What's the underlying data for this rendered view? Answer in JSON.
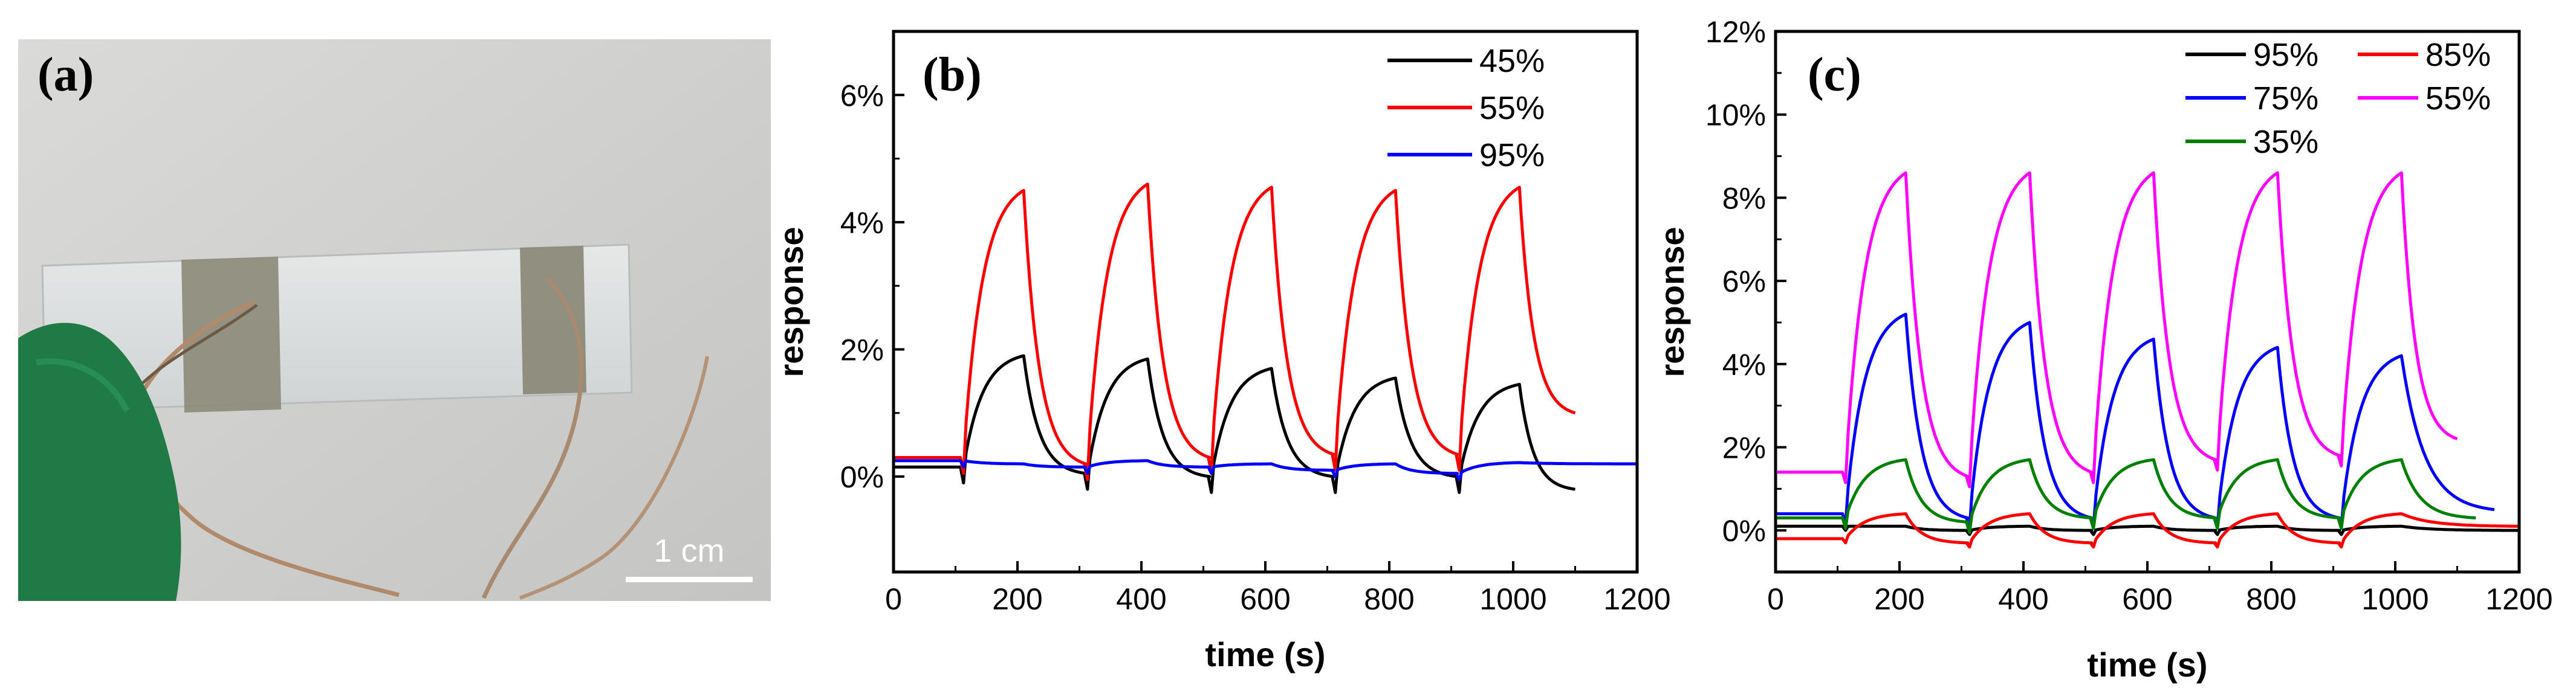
{
  "panel_a": {
    "label": "(a)",
    "scale_bar_label": "1 cm",
    "colors": {
      "background": "#cfcfcd",
      "glove": "#1f7a45",
      "tape": "#8c8a78",
      "wire": "#b08a6a"
    }
  },
  "chart_data": [
    {
      "panel_label": "(b)",
      "type": "line",
      "title": "",
      "xlabel": "time (s)",
      "ylabel": "response",
      "xlim": [
        0,
        1200
      ],
      "ylim": [
        -1.5,
        7
      ],
      "xticks": [
        0,
        200,
        400,
        600,
        800,
        1000,
        1200
      ],
      "yticks": [
        0,
        2,
        4,
        6
      ],
      "xtick_labels": [
        "0",
        "200",
        "400",
        "600",
        "800",
        "1000",
        "1200"
      ],
      "ytick_labels": [
        "0%",
        "2%",
        "4%",
        "6%"
      ],
      "cycles": {
        "starts": [
          110,
          310,
          510,
          710,
          910
        ],
        "on_duration": 100
      },
      "series": [
        {
          "name": "45%",
          "color": "#000000",
          "peaks": [
            1.9,
            1.85,
            1.7,
            1.55,
            1.45
          ],
          "recover_to": [
            0.05,
            0.0,
            0.0,
            0.0,
            -0.2
          ],
          "end_x": 1100
        },
        {
          "name": "55%",
          "color": "#ff0000",
          "peaks": [
            4.5,
            4.6,
            4.55,
            4.5,
            4.55
          ],
          "recover_to": [
            0.2,
            0.3,
            0.35,
            0.35,
            1.0
          ],
          "end_x": 1100
        },
        {
          "name": "95%",
          "color": "#0000ff",
          "peaks": [
            0.2,
            0.25,
            0.2,
            0.2,
            0.22
          ],
          "recover_to": [
            0.15,
            0.15,
            0.1,
            0.05,
            0.2
          ],
          "end_x": 1200
        }
      ]
    },
    {
      "panel_label": "(c)",
      "type": "line",
      "title": "",
      "xlabel": "time (s)",
      "ylabel": "response",
      "xlim": [
        0,
        1200
      ],
      "ylim": [
        -1,
        12
      ],
      "xticks": [
        0,
        200,
        400,
        600,
        800,
        1000,
        1200
      ],
      "yticks": [
        0,
        2,
        4,
        6,
        8,
        10,
        12
      ],
      "xtick_labels": [
        "0",
        "200",
        "400",
        "600",
        "800",
        "1000",
        "1200"
      ],
      "ytick_labels": [
        "0%",
        "2%",
        "4%",
        "6%",
        "8%",
        "10%",
        "12%"
      ],
      "cycles": {
        "starts": [
          110,
          310,
          510,
          710,
          910
        ],
        "on_duration": 100
      },
      "series": [
        {
          "name": "95%",
          "color": "#000000",
          "peaks": [
            0.1,
            0.1,
            0.1,
            0.1,
            0.1
          ],
          "recover_to": [
            0.0,
            0.0,
            0.0,
            0.0,
            0.0
          ],
          "end_x": 1200
        },
        {
          "name": "85%",
          "color": "#ff0000",
          "peaks": [
            0.4,
            0.4,
            0.4,
            0.4,
            0.4
          ],
          "recover_to": [
            -0.3,
            -0.3,
            -0.3,
            -0.3,
            0.1
          ],
          "end_x": 1200
        },
        {
          "name": "75%",
          "color": "#0000ff",
          "peaks": [
            5.2,
            5.0,
            4.6,
            4.4,
            4.2
          ],
          "recover_to": [
            0.3,
            0.3,
            0.3,
            0.3,
            0.5
          ],
          "end_x": 1160
        },
        {
          "name": "55%",
          "color": "#ff00ff",
          "peaks": [
            8.6,
            8.6,
            8.6,
            8.6,
            8.6
          ],
          "recover_to": [
            1.3,
            1.4,
            1.7,
            1.8,
            2.2
          ],
          "end_x": 1100
        },
        {
          "name": "35%",
          "color": "#008000",
          "peaks": [
            1.7,
            1.7,
            1.7,
            1.7,
            1.7
          ],
          "recover_to": [
            0.2,
            0.3,
            0.3,
            0.3,
            0.3
          ],
          "end_x": 1130
        }
      ]
    }
  ]
}
